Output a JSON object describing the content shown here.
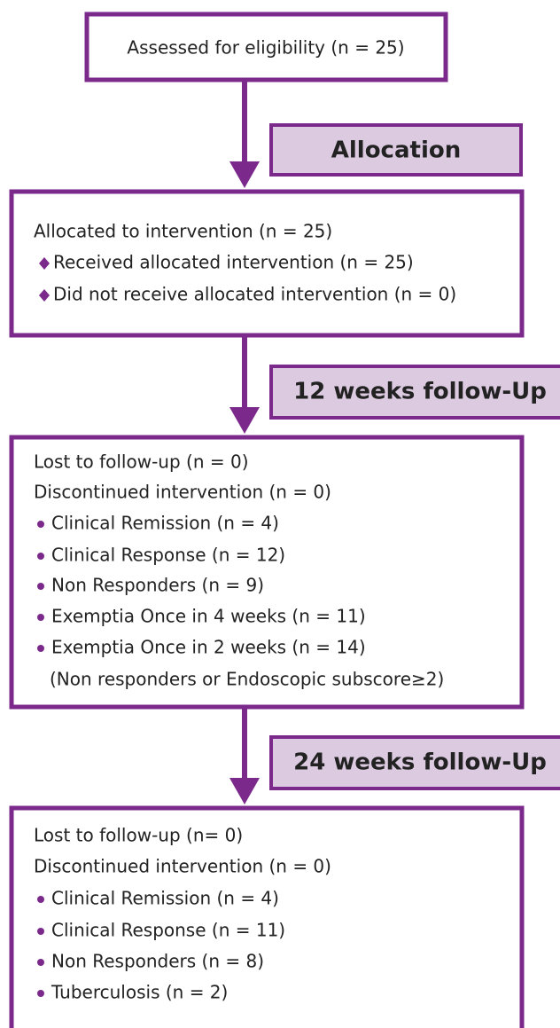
{
  "boxes": [
    {
      "lines": [
        "Assessed for eligibility (n = 25)"
      ]
    },
    {
      "lines": [
        "Allocated to intervention (n = 25)",
        "Received allocated intervention (n = 25)",
        "Did not receive allocated intervention (n = 0)"
      ]
    },
    {
      "lines": [
        "Lost to follow-up (n = 0)",
        "Discontinued intervention (n = 0)",
        "Clinical Remission (n = 4)",
        "Clinical Response (n = 12)",
        "Non Responders (n = 9)",
        "Exemptia Once in 4 weeks (n = 11)",
        "Exemptia Once in 2 weeks (n = 14)",
        "(Non responders or Endoscopic subscore≥2)"
      ]
    },
    {
      "lines": [
        "Lost to follow-up (n= 0)",
        "Discontinued intervention (n = 0)",
        "Clinical Remission (n = 4)",
        "Clinical Response (n = 11)",
        "Non Responders (n = 8)",
        "Tuberculosis (n = 2)"
      ]
    }
  ],
  "stages": [
    "Allocation",
    "12 weeks follow-Up",
    "24 weeks follow-Up"
  ]
}
